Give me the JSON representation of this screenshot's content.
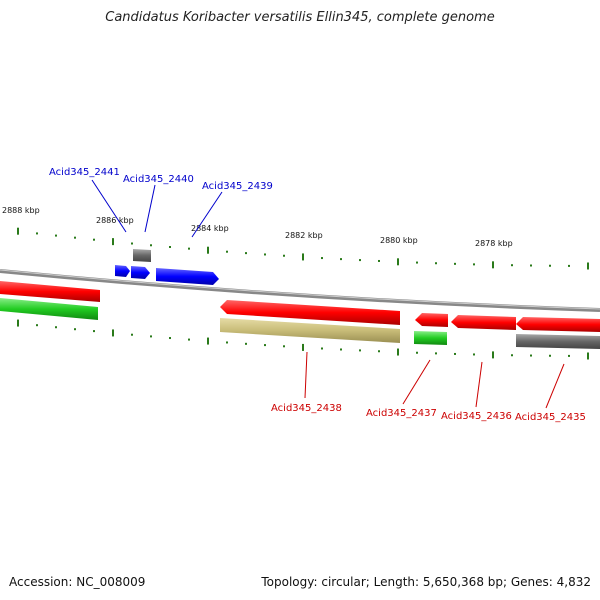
{
  "title": "Candidatus Koribacter versatilis Ellin345, complete genome",
  "footer": {
    "accession": "Accession: NC_008009",
    "summary": "Topology: circular; Length: 5,650,368 bp; Genes: 4,832"
  },
  "scale_labels": [
    "2888 kbp",
    "2886 kbp",
    "2884 kbp",
    "2882 kbp",
    "2880 kbp",
    "2878 kbp"
  ],
  "genes": [
    {
      "label": "Acid345_2441",
      "color": "#0000cc"
    },
    {
      "label": "Acid345_2440",
      "color": "#0000cc"
    },
    {
      "label": "Acid345_2439",
      "color": "#0000cc"
    },
    {
      "label": "Acid345_2438",
      "color": "#cc0000"
    },
    {
      "label": "Acid345_2437",
      "color": "#cc0000"
    },
    {
      "label": "Acid345_2436",
      "color": "#cc0000"
    },
    {
      "label": "Acid345_2435",
      "color": "#cc0000"
    }
  ],
  "colors": {
    "blue": "#0000ff",
    "red": "#ff0000",
    "green": "#22cc22",
    "gray": "#666666",
    "khaki": "#c8bc78",
    "tick": "#2a7a1a",
    "backbone": "#999999"
  }
}
